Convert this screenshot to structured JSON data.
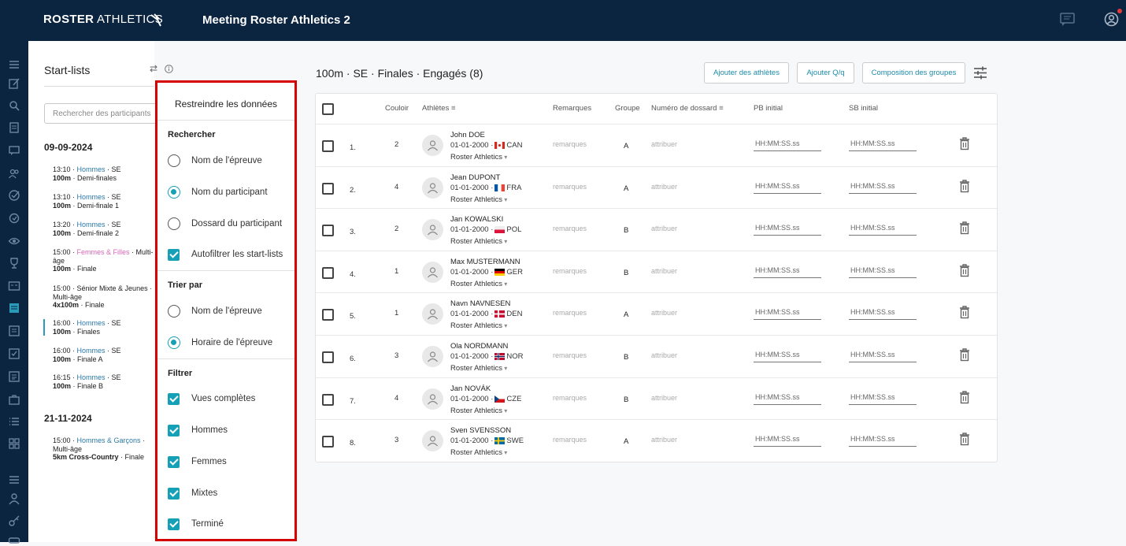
{
  "topbar": {
    "logo_bold": "ROSTER",
    "logo_light": " ATHLETICS",
    "meeting_title": "Meeting Roster Athletics 2"
  },
  "colors": {
    "navy": "#0b2440",
    "accent": "#15a0b5",
    "highlight_border": "#d50000",
    "women_pink": "#d667b5",
    "men_blue": "#2a7aa7"
  },
  "startlists": {
    "title": "Start-lists",
    "search_placeholder": "Rechercher des participants",
    "dates": [
      {
        "date": "09-09-2024",
        "events": [
          {
            "time": "13:10 · ",
            "gender": "Hommes",
            "gender_type": "men",
            "cat": " · SE",
            "event": "100m",
            "round": " · Demi-finales"
          },
          {
            "time": "13:10 · ",
            "gender": "Hommes",
            "gender_type": "men",
            "cat": " · SE",
            "event": "100m",
            "round": " · Demi-finale 1"
          },
          {
            "time": "13:20 · ",
            "gender": "Hommes",
            "gender_type": "men",
            "cat": " · SE",
            "event": "100m",
            "round": " · Demi-finale 2"
          },
          {
            "time": "15:00 · ",
            "gender": "Femmes & Filles",
            "gender_type": "women",
            "cat": " · Multi-âge",
            "event": "100m",
            "round": " · Finale"
          },
          {
            "time": "15:00 · ",
            "gender": "Sénior Mixte & Jeunes",
            "gender_type": "mixed",
            "cat": " · Multi-âge",
            "event": "4x100m",
            "round": " · Finale"
          },
          {
            "time": "16:00 · ",
            "gender": "Hommes",
            "gender_type": "men",
            "cat": " · SE",
            "event": "100m",
            "round": " · Finales"
          },
          {
            "time": "16:00 · ",
            "gender": "Hommes",
            "gender_type": "men",
            "cat": " · SE",
            "event": "100m",
            "round": " · Finale A"
          },
          {
            "time": "16:15 · ",
            "gender": "Hommes",
            "gender_type": "men",
            "cat": " · SE",
            "event": "100m",
            "round": " · Finale B"
          }
        ]
      },
      {
        "date": "21-11-2024",
        "events": [
          {
            "time": "15:00 · ",
            "gender": "Hommes & Garçons",
            "gender_type": "men",
            "cat": " · Multi-âge",
            "event": "5km Cross-Country",
            "round": " · Finale"
          }
        ]
      }
    ]
  },
  "filter_panel": {
    "title": "Restreindre les données",
    "search_section": "Rechercher",
    "search_options": [
      {
        "label": "Nom de l'épreuve",
        "type": "radio",
        "selected": false
      },
      {
        "label": "Nom du participant",
        "type": "radio",
        "selected": true
      },
      {
        "label": "Dossard du participant",
        "type": "radio",
        "selected": false
      },
      {
        "label": "Autofiltrer les start-lists",
        "type": "checkbox",
        "checked": true
      }
    ],
    "sort_section": "Trier par",
    "sort_options": [
      {
        "label": "Nom de l'épreuve",
        "selected": false
      },
      {
        "label": "Horaire de l'épreuve",
        "selected": true
      }
    ],
    "filter_section": "Filtrer",
    "filter_options": [
      {
        "label": "Vues complètes",
        "checked": true
      },
      {
        "label": "Hommes",
        "checked": true
      },
      {
        "label": "Femmes",
        "checked": true
      },
      {
        "label": "Mixtes",
        "checked": true
      },
      {
        "label": "Terminé",
        "checked": true
      }
    ]
  },
  "main": {
    "title": "100m · SE · Finales · Engagés (8)",
    "buttons": {
      "add_athletes": "Ajouter des athlètes",
      "add_qq": "Ajouter Q/q",
      "groups": "Composition des groupes"
    },
    "columns": {
      "lane": "Couloir",
      "athletes": "Athlètes",
      "remarks": "Remarques",
      "group": "Groupe",
      "bib": "Numéro de dossard",
      "pb": "PB initial",
      "sb": "SB initial"
    },
    "rows": [
      {
        "num": "1.",
        "lane": "2",
        "name": "John DOE",
        "dob": "01-01-2000 · ",
        "country": "CAN",
        "club": "Roster Athletics",
        "remark": "remarques",
        "group": "A",
        "bib": "attribuer",
        "pb": "HH:MM:SS.ss",
        "sb": "HH:MM:SS.ss"
      },
      {
        "num": "2.",
        "lane": "4",
        "name": "Jean DUPONT",
        "dob": "01-01-2000 · ",
        "country": "FRA",
        "club": "Roster Athletics",
        "remark": "remarques",
        "group": "A",
        "bib": "attribuer",
        "pb": "HH:MM:SS.ss",
        "sb": "HH:MM:SS.ss"
      },
      {
        "num": "3.",
        "lane": "2",
        "name": "Jan KOWALSKI",
        "dob": "01-01-2000 · ",
        "country": "POL",
        "club": "Roster Athletics",
        "remark": "remarques",
        "group": "B",
        "bib": "attribuer",
        "pb": "HH:MM:SS.ss",
        "sb": "HH:MM:SS.ss"
      },
      {
        "num": "4.",
        "lane": "1",
        "name": "Max MUSTERMANN",
        "dob": "01-01-2000 · ",
        "country": "GER",
        "club": "Roster Athletics",
        "remark": "remarques",
        "group": "B",
        "bib": "attribuer",
        "pb": "HH:MM:SS.ss",
        "sb": "HH:MM:SS.ss"
      },
      {
        "num": "5.",
        "lane": "1",
        "name": "Navn NAVNESEN",
        "dob": "01-01-2000 · ",
        "country": "DEN",
        "club": "Roster Athletics",
        "remark": "remarques",
        "group": "A",
        "bib": "attribuer",
        "pb": "HH:MM:SS.ss",
        "sb": "HH:MM:SS.ss"
      },
      {
        "num": "6.",
        "lane": "3",
        "name": "Ola NORDMANN",
        "dob": "01-01-2000 · ",
        "country": "NOR",
        "club": "Roster Athletics",
        "remark": "remarques",
        "group": "B",
        "bib": "attribuer",
        "pb": "HH:MM:SS.ss",
        "sb": "HH:MM:SS.ss"
      },
      {
        "num": "7.",
        "lane": "4",
        "name": "Jan NOVÁK",
        "dob": "01-01-2000 · ",
        "country": "CZE",
        "club": "Roster Athletics",
        "remark": "remarques",
        "group": "B",
        "bib": "attribuer",
        "pb": "HH:MM:SS.ss",
        "sb": "HH:MM:SS.ss"
      },
      {
        "num": "8.",
        "lane": "3",
        "name": "Sven SVENSSON",
        "dob": "01-01-2000 · ",
        "country": "SWE",
        "club": "Roster Athletics",
        "remark": "remarques",
        "group": "A",
        "bib": "attribuer",
        "pb": "HH:MM:SS.ss",
        "sb": "HH:MM:SS.ss"
      }
    ]
  },
  "rail_icons": [
    "menu-icon",
    "edit-icon",
    "search-icon",
    "document-icon",
    "chat-icon",
    "people-icon",
    "check-circle-icon",
    "timer-icon",
    "eye-icon",
    "trophy-icon",
    "scoreboard-icon",
    "calendar-icon",
    "list-icon",
    "checklist-icon",
    "report-icon",
    "briefcase-icon",
    "bullet-list-icon",
    "grid-icon",
    "menu-icon",
    "person-icon",
    "key-icon",
    "car-icon"
  ]
}
